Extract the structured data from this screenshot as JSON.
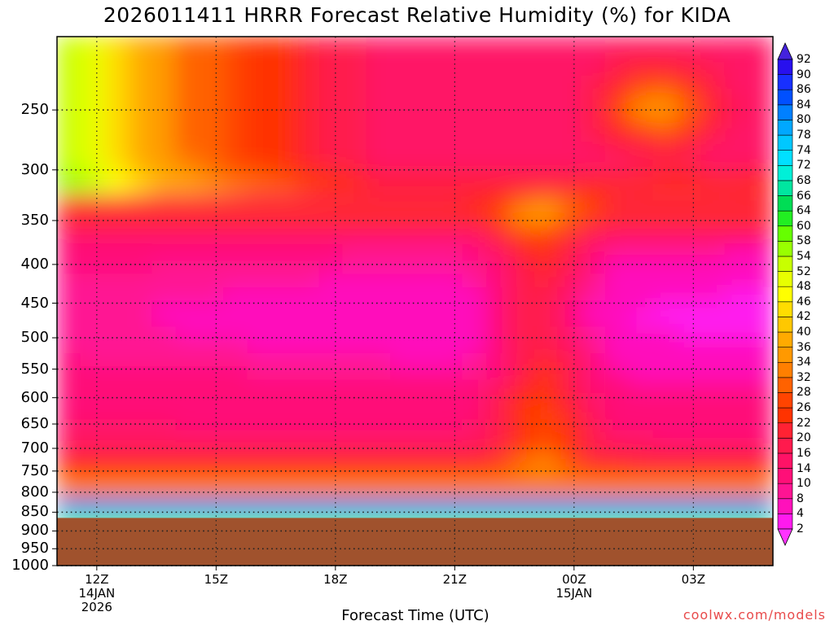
{
  "title": "2026011411 HRRR Forecast Relative Humidity (%) for KIDA",
  "xlabel": "Forecast Time (UTC)",
  "credit": "coolwx.com/models",
  "colors": {
    "ground": "#a0522d",
    "grid": "#555555",
    "credit": "#e84a4a"
  },
  "chart_data": {
    "type": "heatmap",
    "title": "2026011411 HRRR Forecast Relative Humidity (%) for KIDA",
    "xlabel": "Forecast Time (UTC)",
    "ylabel": "",
    "x_ticks": [
      {
        "time": "12Z",
        "lines": [
          "12Z",
          "14JAN",
          "2026"
        ]
      },
      {
        "time": "15Z",
        "lines": [
          "15Z"
        ]
      },
      {
        "time": "18Z",
        "lines": [
          "18Z"
        ]
      },
      {
        "time": "21Z",
        "lines": [
          "21Z"
        ]
      },
      {
        "time": "00Z",
        "lines": [
          "00Z",
          "15JAN"
        ]
      },
      {
        "time": "03Z",
        "lines": [
          "03Z"
        ]
      }
    ],
    "xlim_hours_from_12Z": [
      -1,
      17
    ],
    "y_ticks_hPa": [
      250,
      300,
      350,
      400,
      450,
      500,
      550,
      600,
      650,
      700,
      750,
      800,
      850,
      900,
      950,
      1000
    ],
    "ylim_hPa": [
      200,
      1000
    ],
    "y_scale": "log-pressure (inverted)",
    "surface_pressure_hPa": 865,
    "grid": true,
    "colorbar_levels": [
      2,
      4,
      8,
      10,
      14,
      16,
      20,
      22,
      26,
      28,
      32,
      34,
      36,
      40,
      42,
      46,
      48,
      52,
      54,
      58,
      60,
      64,
      66,
      68,
      72,
      74,
      78,
      80,
      84,
      86,
      90,
      92
    ],
    "colorbar_extend": "both",
    "field_description": "Upper levels (200-330 hPa) moist 30-58% early, drying to 10-20%; mid levels 350-750 hPa very dry 2-16%; sharp moist layer 70-92% near 800-865 hPa above ground."
  }
}
